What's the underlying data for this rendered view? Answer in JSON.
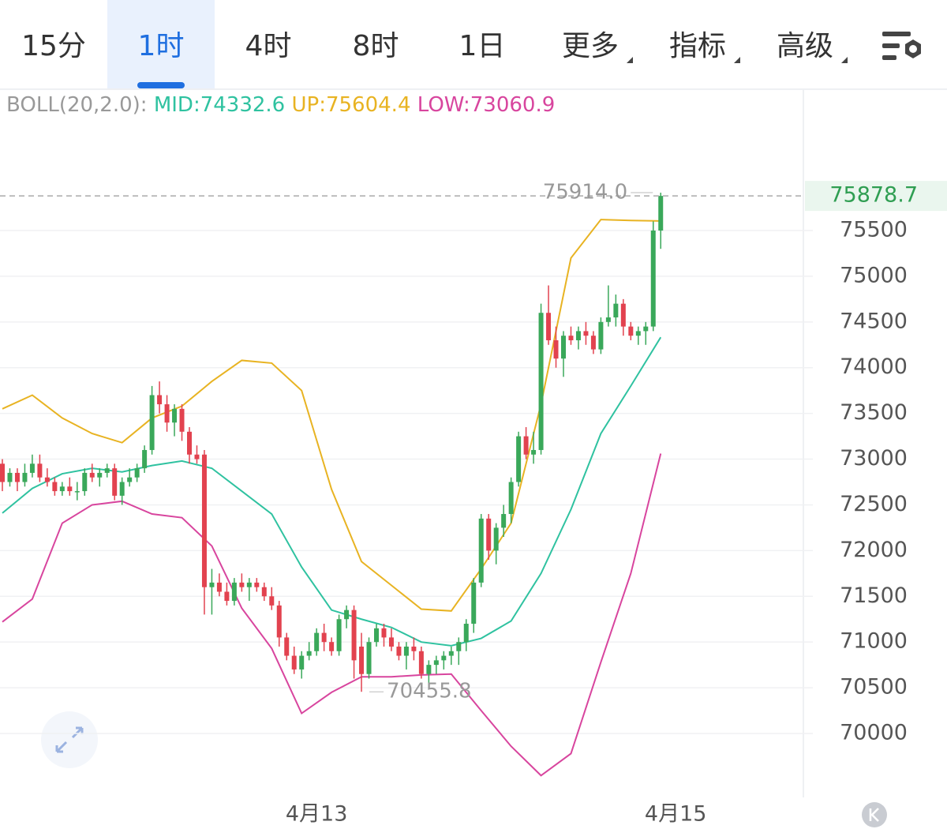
{
  "tabs": [
    "15分",
    "1时",
    "4时",
    "8时",
    "1日",
    "更多",
    "指标",
    "高级"
  ],
  "active_tab": 1,
  "chart_data": {
    "type": "candlestick",
    "legend": [
      "BOLL(20,2.0):"
    ],
    "up_color": "#3aa85a",
    "down_color": "#e2424f",
    "x": [
      0,
      1,
      2,
      3,
      4,
      5,
      6,
      7,
      8,
      9,
      10,
      11,
      12,
      13,
      14,
      15,
      16,
      17,
      18,
      19,
      20,
      21,
      22,
      23,
      24,
      25,
      26,
      27,
      28,
      29,
      30,
      31,
      32,
      33,
      34,
      35,
      36,
      37,
      38,
      39,
      40,
      41,
      42,
      43,
      44,
      45,
      46,
      47,
      48,
      49,
      50,
      51,
      52,
      53,
      54,
      55,
      56,
      57,
      58,
      59,
      60,
      61,
      62,
      63,
      64,
      65,
      66,
      67,
      68,
      69,
      70,
      71,
      72,
      73,
      74,
      75,
      76,
      77,
      78,
      79,
      80,
      81,
      82,
      83,
      84,
      85,
      86,
      87,
      88
    ],
    "open": [
      72950,
      72750,
      72850,
      72750,
      72850,
      72950,
      72800,
      72750,
      72650,
      72700,
      72650,
      72650,
      72850,
      72800,
      72850,
      72900,
      72600,
      72750,
      72800,
      72900,
      73100,
      73700,
      73600,
      73400,
      73550,
      73300,
      73050,
      73050,
      71600,
      71650,
      71550,
      71450,
      71650,
      71600,
      71650,
      71600,
      71500,
      71400,
      71050,
      70850,
      70700,
      70850,
      70900,
      71100,
      71000,
      70900,
      71250,
      71350,
      70950,
      70650,
      71000,
      71150,
      71050,
      70950,
      70850,
      70950,
      70900,
      70650,
      70750,
      70800,
      70850,
      70900,
      71000,
      71200,
      71650,
      72350,
      72000,
      72250,
      72400,
      72750,
      73250,
      73050,
      73100,
      74600,
      74300,
      74100,
      74350,
      74300,
      74400,
      74350,
      74200,
      74500,
      74550,
      74700,
      74450,
      74350,
      74400,
      74450,
      75500
    ],
    "high": [
      73000,
      72900,
      72900,
      72950,
      73050,
      73050,
      72900,
      72800,
      72750,
      72800,
      72750,
      72900,
      72950,
      72900,
      72950,
      72950,
      72800,
      72900,
      72950,
      73150,
      73800,
      73850,
      73700,
      73600,
      73600,
      73350,
      73150,
      73100,
      71800,
      71750,
      71650,
      71700,
      71750,
      71700,
      71700,
      71650,
      71600,
      71450,
      71100,
      70950,
      70900,
      71000,
      71150,
      71200,
      71050,
      71300,
      71400,
      71400,
      71100,
      71050,
      71200,
      71200,
      71150,
      71000,
      71000,
      71050,
      70950,
      70800,
      70850,
      70900,
      70950,
      71050,
      71250,
      71700,
      72400,
      72400,
      72300,
      72500,
      72800,
      73300,
      73350,
      73300,
      74700,
      74900,
      74450,
      74400,
      74450,
      74450,
      74500,
      74400,
      74550,
      74900,
      74800,
      74750,
      74500,
      74450,
      74500,
      75600,
      75914.0
    ],
    "low": [
      72650,
      72700,
      72650,
      72700,
      72800,
      72750,
      72700,
      72600,
      72600,
      72600,
      72550,
      72600,
      72750,
      72700,
      72800,
      72550,
      72500,
      72700,
      72750,
      72850,
      73050,
      73500,
      73300,
      73250,
      73200,
      72950,
      72950,
      71300,
      71300,
      71500,
      71400,
      71400,
      71550,
      71450,
      71550,
      71450,
      71350,
      70950,
      70800,
      70650,
      70600,
      70800,
      70850,
      70900,
      70850,
      70850,
      71150,
      70600,
      70455.8,
      70600,
      70950,
      70950,
      70900,
      70800,
      70700,
      70800,
      70600,
      70550,
      70650,
      70700,
      70750,
      70750,
      70900,
      71100,
      71600,
      71900,
      71850,
      72150,
      72300,
      72700,
      73000,
      72950,
      73050,
      74250,
      74000,
      73900,
      74250,
      74200,
      74250,
      74150,
      74150,
      74450,
      74450,
      74350,
      74300,
      74250,
      74250,
      74400,
      75300
    ],
    "close": [
      72750,
      72850,
      72750,
      72850,
      72950,
      72800,
      72750,
      72650,
      72700,
      72650,
      72650,
      72850,
      72800,
      72850,
      72900,
      72600,
      72750,
      72800,
      72900,
      73100,
      73700,
      73600,
      73400,
      73550,
      73300,
      73050,
      73000,
      71600,
      71650,
      71550,
      71450,
      71650,
      71600,
      71650,
      71600,
      71500,
      71400,
      71050,
      70850,
      70700,
      70850,
      70900,
      71100,
      71000,
      70900,
      71250,
      71350,
      70800,
      70650,
      71000,
      71150,
      71050,
      70950,
      70850,
      70950,
      70900,
      70650,
      70750,
      70800,
      70850,
      70900,
      71000,
      71200,
      71650,
      72350,
      72000,
      72250,
      72400,
      72750,
      73250,
      73050,
      73100,
      74600,
      74300,
      74100,
      74350,
      74300,
      74400,
      74350,
      74200,
      74500,
      74550,
      74700,
      74450,
      74350,
      74400,
      74450,
      75500,
      75878.7
    ],
    "bands": [
      {
        "label": "MID:74332.6",
        "color": "#2fc2a0",
        "x": [
          0,
          4,
          8,
          12,
          16,
          20,
          24,
          28,
          32,
          36,
          40,
          44,
          48,
          52,
          56,
          60,
          64,
          68,
          72,
          76,
          80,
          84,
          88
        ],
        "values": [
          72410,
          72680,
          72840,
          72900,
          72860,
          72930,
          72980,
          72900,
          72650,
          72400,
          71820,
          71350,
          71250,
          71160,
          71000,
          70960,
          71040,
          71230,
          71750,
          72450,
          73280,
          73800,
          74332.6
        ]
      },
      {
        "label": "UP:75604.4",
        "color": "#e8b322",
        "x": [
          0,
          4,
          8,
          12,
          16,
          20,
          24,
          28,
          32,
          36,
          40,
          44,
          48,
          52,
          56,
          60,
          64,
          68,
          72,
          76,
          80,
          84,
          88
        ],
        "values": [
          73550,
          73700,
          73450,
          73280,
          73180,
          73450,
          73580,
          73850,
          74080,
          74050,
          73750,
          72670,
          71880,
          71620,
          71360,
          71340,
          71800,
          72300,
          73600,
          75200,
          75620,
          75610,
          75604.4
        ]
      },
      {
        "label": "LOW:73060.9",
        "color": "#d8459e",
        "x": [
          0,
          4,
          8,
          12,
          16,
          20,
          24,
          28,
          32,
          36,
          40,
          44,
          48,
          52,
          56,
          60,
          64,
          68,
          72,
          76,
          80,
          84,
          88
        ],
        "values": [
          71220,
          71470,
          72300,
          72500,
          72540,
          72400,
          72360,
          72050,
          71370,
          70930,
          70220,
          70450,
          70620,
          70620,
          70640,
          70650,
          70250,
          69860,
          69540,
          69780,
          70780,
          71750,
          73060.9
        ]
      }
    ],
    "annotations": [
      {
        "value": 75914.0,
        "label": "75914.0"
      },
      {
        "value": 70455.8,
        "label": "70455.8"
      }
    ],
    "xlim": [
      -0.3,
      107.1
    ],
    "xticks": [
      {
        "value": 42,
        "label": "4月13"
      },
      {
        "value": 90,
        "label": "4月15"
      }
    ],
    "ylim": [
      69300,
      77030
    ],
    "yticks": [
      70000,
      70500,
      71000,
      71500,
      72000,
      72500,
      73000,
      73500,
      74000,
      74500,
      75000,
      75500
    ],
    "grid": true
  }
}
